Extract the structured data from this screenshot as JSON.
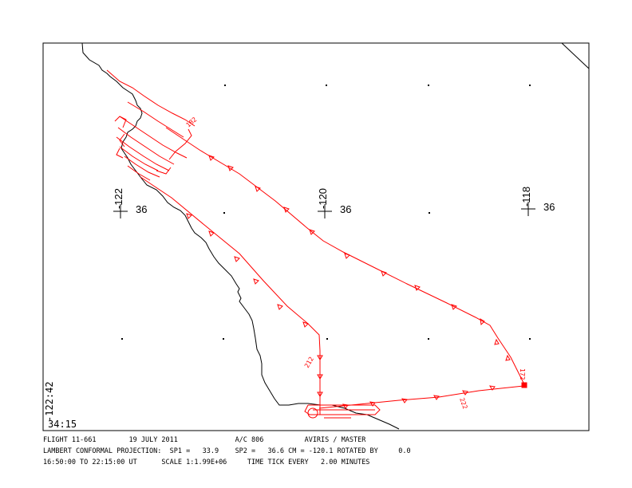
{
  "graticule": [
    {
      "lon": "-122",
      "lat": "36"
    },
    {
      "lon": "-120",
      "lat": "36"
    },
    {
      "lon": "-118",
      "lat": "36"
    }
  ],
  "corner": {
    "lon": "-122:42",
    "lat": "34:15"
  },
  "track_labels": [
    "182",
    "212",
    "172",
    "222"
  ],
  "colors": {
    "track": "#ff0000",
    "coast": "#000000",
    "frame": "#000000"
  },
  "footer": {
    "flight": "FLIGHT 11-661",
    "date": "19 JULY 2011",
    "aircraft": "A/C 806",
    "instrument": "AVIRIS / MASTER",
    "projection": "LAMBERT CONFORMAL PROJECTION:",
    "sp1": "SP1 =   33.9",
    "sp2": "SP2 =   36.6",
    "cm": "CM = -120.1",
    "rotated": "ROTATED BY     0.0",
    "time_range": "16:50:00 TO 22:15:00 UT",
    "scale": "SCALE 1:1.99E+06",
    "tick": "TIME TICK EVERY   2.00 MINUTES"
  }
}
